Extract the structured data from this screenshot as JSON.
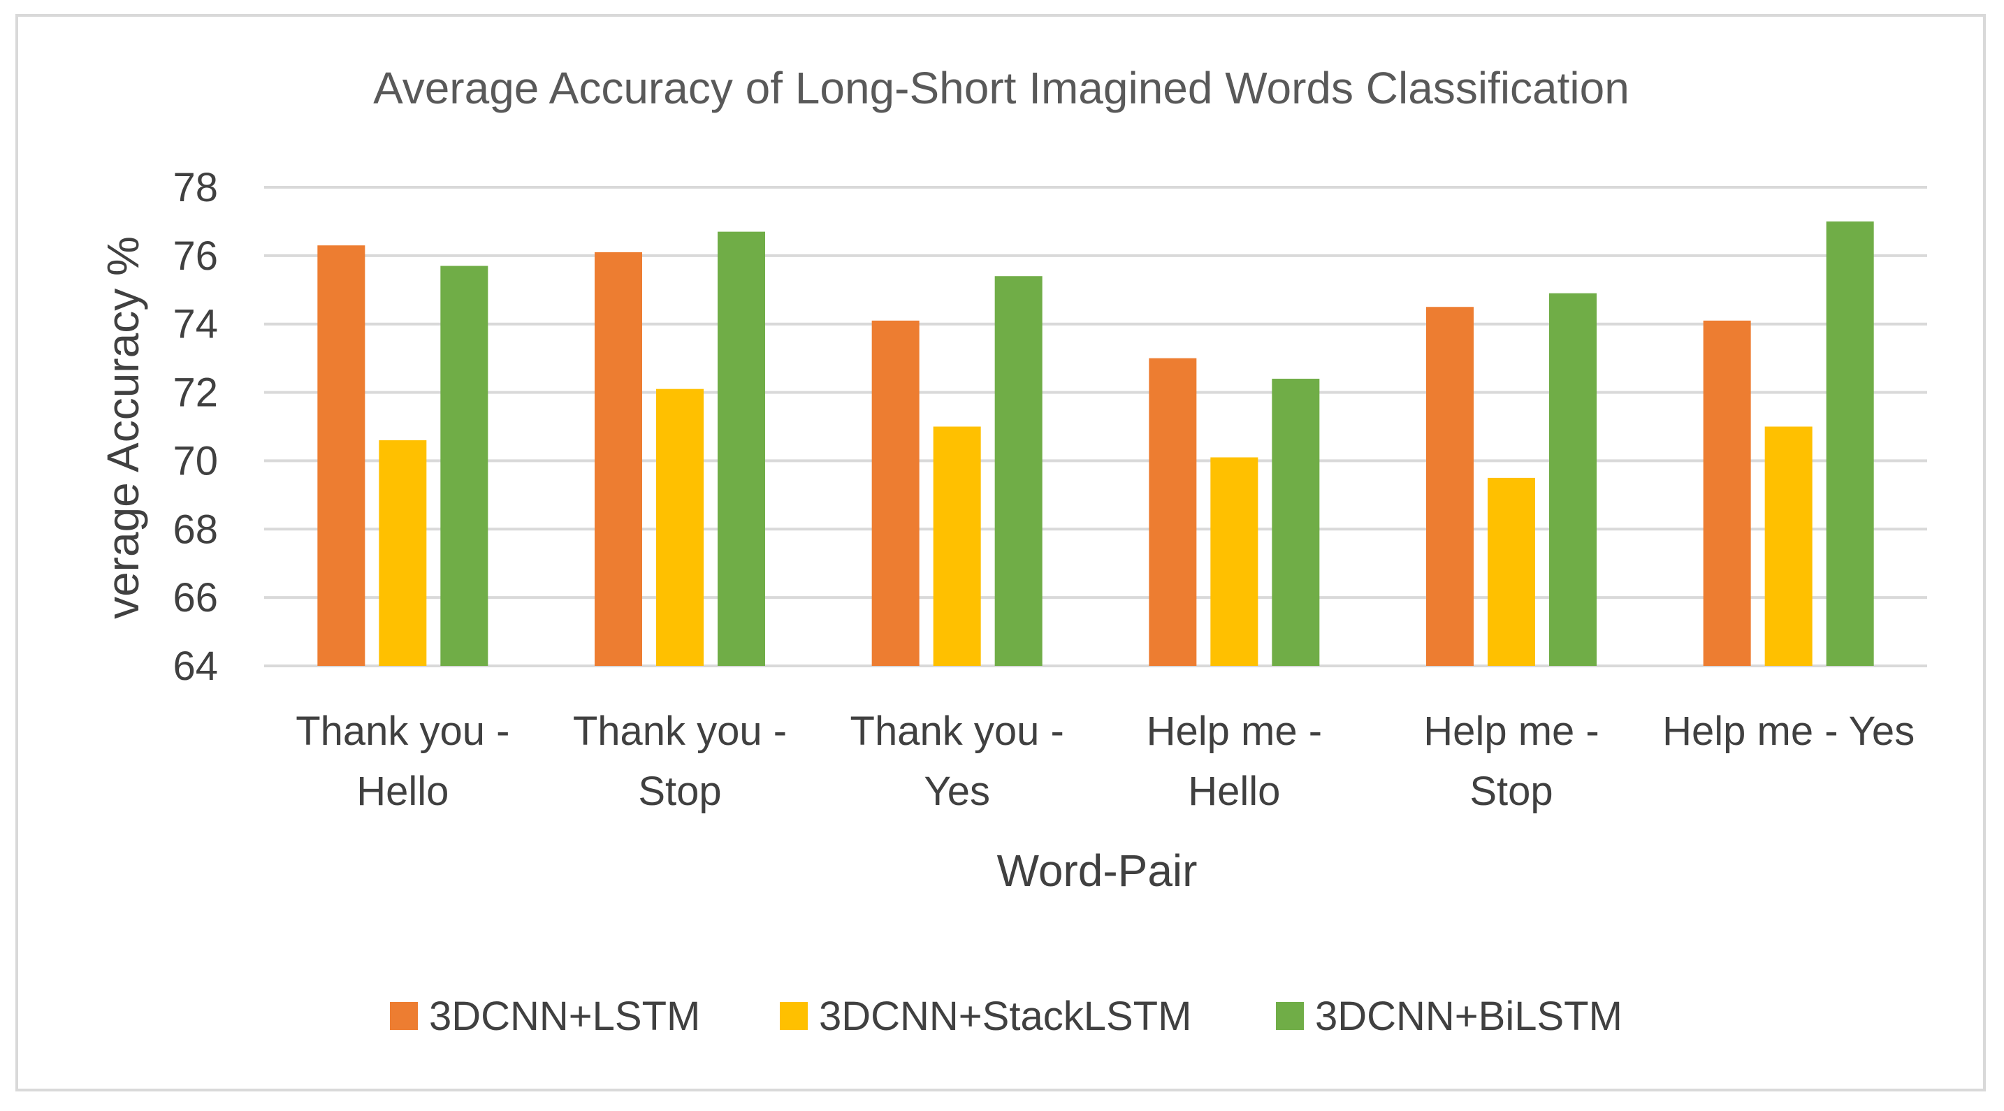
{
  "chart_data": {
    "type": "bar",
    "title": "Average Accuracy of Long-Short Imagined Words Classification",
    "xlabel": "Word-Pair",
    "ylabel": "verage Accuracy %",
    "ylim": [
      64,
      78
    ],
    "yticks": [
      "64",
      "66",
      "68",
      "70",
      "72",
      "74",
      "76",
      "78"
    ],
    "categories": [
      [
        "Thank you -",
        "Hello"
      ],
      [
        "Thank you -",
        "Stop"
      ],
      [
        "Thank you -",
        "Yes"
      ],
      [
        "Help me -",
        "Hello"
      ],
      [
        "Help me -",
        "Stop"
      ],
      [
        "Help me - Yes"
      ]
    ],
    "series": [
      {
        "name": "3DCNN+LSTM",
        "color": "#ED7D31",
        "values": [
          76.3,
          76.1,
          74.1,
          73.0,
          74.5,
          74.1
        ]
      },
      {
        "name": "3DCNN+StackLSTM",
        "color": "#FFC000",
        "values": [
          70.6,
          72.1,
          71.0,
          70.1,
          69.5,
          71.0
        ]
      },
      {
        "name": "3DCNN+BiLSTM",
        "color": "#70AD47",
        "values": [
          75.7,
          76.7,
          75.4,
          72.4,
          74.9,
          77.0
        ]
      }
    ],
    "grid": true,
    "legend_position": "bottom",
    "gridline_color": "#D9D9D9"
  }
}
